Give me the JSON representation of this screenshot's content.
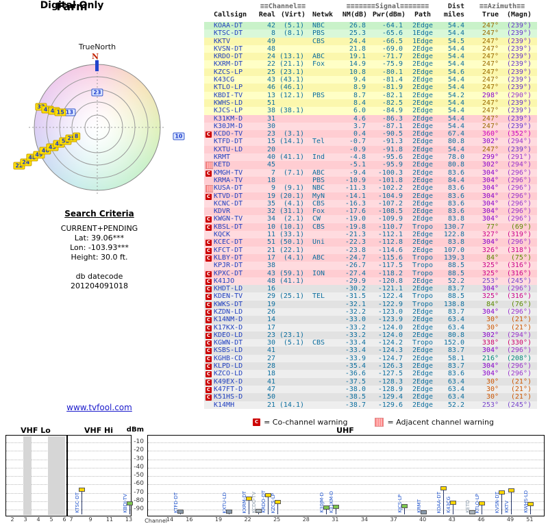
{
  "titles": {
    "title": "Farm",
    "subtitle": "Digital Only"
  },
  "radar": {
    "north_label": "TrueNorth",
    "n_label": "N",
    "markers": [
      {
        "ch": "23",
        "az": 0,
        "r": 0.55,
        "style": "blue"
      },
      {
        "ch": "13",
        "az": 298,
        "r": 0.5,
        "style": "blue"
      },
      {
        "ch": "10",
        "az": 96,
        "r": 1.3,
        "style": "blue"
      },
      {
        "ch": "32",
        "az": 290,
        "r": 0.95,
        "style": "yellow"
      },
      {
        "ch": "45",
        "az": 290,
        "r": 0.84,
        "style": "yellow"
      },
      {
        "ch": "40",
        "az": 291,
        "r": 0.73,
        "style": "yellow"
      },
      {
        "ch": "15",
        "az": 292,
        "r": 0.63,
        "style": "yellow"
      },
      {
        "ch": "22",
        "az": 244,
        "r": 1.38,
        "style": "yellow"
      },
      {
        "ch": "24",
        "az": 244,
        "r": 1.26,
        "style": "yellow"
      },
      {
        "ch": "48",
        "az": 245,
        "r": 1.14,
        "style": "yellow"
      },
      {
        "ch": "49",
        "az": 245,
        "r": 1.02,
        "style": "yellow"
      },
      {
        "ch": "46",
        "az": 246,
        "r": 0.9,
        "style": "yellow"
      },
      {
        "ch": "43",
        "az": 246,
        "r": 0.78,
        "style": "yellow"
      },
      {
        "ch": "42",
        "az": 247,
        "r": 0.66,
        "style": "yellow"
      },
      {
        "ch": "51",
        "az": 247,
        "r": 0.55,
        "style": "yellow"
      },
      {
        "ch": "25",
        "az": 247,
        "r": 0.45,
        "style": "yellow"
      },
      {
        "ch": "8",
        "az": 247,
        "r": 0.36,
        "style": "yellow"
      }
    ]
  },
  "criteria": {
    "heading": "Search Criteria",
    "lines": [
      "CURRENT+PENDING",
      "Lat: 39.06***",
      "Lon: -103.93***",
      "Height: 30.0 ft."
    ],
    "datecode_label": "db datecode",
    "datecode": "201204091018"
  },
  "link": {
    "label": "www.tvfool.com"
  },
  "legend": {
    "co": "C",
    "co_text": "= Co-channel warning",
    "adj_text": "= Adjacent channel warning"
  },
  "table": {
    "header": {
      "channel": "≡≡Channel≡≡",
      "signal": "≡≡≡≡≡≡≡Signal≡≡≡≡≡≡≡",
      "dist": "Dist",
      "azimuth": "≡≡Azimuth≡≡",
      "callsign": "Callsign",
      "real": "Real",
      "virt": "(Virt)",
      "netwk": "Netwk",
      "nm": "NM(dB)",
      "pwr": "Pwr(dBm)",
      "path": "Path",
      "miles": "miles",
      "true": "True",
      "magn": "(Magn)"
    },
    "az_colors": {
      "247": "#9a6a00",
      "239": "#6633cc",
      "298": "#8800cc",
      "290": "#9933cc",
      "360": "#cc00bb",
      "352": "#cc00bb",
      "302": "#8800cc",
      "294": "#9933cc",
      "299": "#8800cc",
      "291": "#9933cc",
      "304": "#8800cc",
      "296": "#9933cc",
      "77": "#5a8a00",
      "69": "#5a8a00",
      "327": "#cc0088",
      "319": "#cc0088",
      "326": "#cc0088",
      "318": "#cc0088",
      "84": "#5a8a00",
      "75": "#5a8a00",
      "76": "#5a8a00",
      "325": "#cc0088",
      "316": "#cc0088",
      "253": "#7744cc",
      "245": "#7744cc",
      "30": "#cc5500",
      "21": "#cc5500",
      "338": "#cc0066",
      "330": "#cc0066",
      "216": "#008877",
      "208": "#008877"
    },
    "columns": [
      "warn",
      "callsign",
      "real",
      "virt",
      "netwk",
      "nm_db",
      "pwr_dbm",
      "path",
      "miles",
      "az_true",
      "az_magn",
      "band"
    ],
    "rows": [
      [
        "",
        "KOAA-DT",
        "42",
        "(5.1)",
        "NBC",
        "26.8",
        "-64.1",
        "2Edge",
        "54.4",
        "247°",
        "(239°)",
        "green"
      ],
      [
        "",
        "KTSC-DT",
        "8",
        "(8.1)",
        "PBS",
        "25.3",
        "-65.6",
        "1Edge",
        "54.4",
        "247°",
        "(239°)",
        "green"
      ],
      [
        "",
        "KKTV",
        "49",
        "",
        "CBS",
        "24.4",
        "-66.5",
        "1Edge",
        "54.5",
        "247°",
        "(239°)",
        "yellow"
      ],
      [
        "",
        "KVSN-DT",
        "48",
        "",
        "",
        "21.8",
        "-69.0",
        "2Edge",
        "54.4",
        "247°",
        "(239°)",
        "yellow"
      ],
      [
        "",
        "KRDO-DT",
        "24",
        "(13.1)",
        "ABC",
        "19.1",
        "-71.7",
        "2Edge",
        "54.4",
        "247°",
        "(239°)",
        "yellow"
      ],
      [
        "",
        "KXRM-DT",
        "22",
        "(21.1)",
        "Fox",
        "14.9",
        "-75.9",
        "2Edge",
        "54.4",
        "247°",
        "(239°)",
        "yellow"
      ],
      [
        "",
        "KZCS-LP",
        "25",
        "(23.1)",
        "",
        "10.8",
        "-80.1",
        "2Edge",
        "54.6",
        "247°",
        "(239°)",
        "yellow"
      ],
      [
        "",
        "K43CG",
        "43",
        "(43.1)",
        "",
        "9.4",
        "-81.4",
        "2Edge",
        "54.4",
        "247°",
        "(239°)",
        "yellow"
      ],
      [
        "",
        "KTLO-LP",
        "46",
        "(46.1)",
        "",
        "8.9",
        "-81.9",
        "2Edge",
        "54.4",
        "247°",
        "(239°)",
        "yellow"
      ],
      [
        "",
        "KBDI-TV",
        "13",
        "(12.1)",
        "PBS",
        "8.7",
        "-82.1",
        "2Edge",
        "54.2",
        "298°",
        "(290°)",
        "yellow"
      ],
      [
        "",
        "KWHS-LD",
        "51",
        "",
        "",
        "8.4",
        "-82.5",
        "2Edge",
        "54.4",
        "247°",
        "(239°)",
        "yellow"
      ],
      [
        "",
        "KJCS-LP",
        "38",
        "(38.1)",
        "",
        "6.0",
        "-84.9",
        "2Edge",
        "54.4",
        "247°",
        "(239°)",
        "yellow"
      ],
      [
        "",
        "K31KM-D",
        "31",
        "",
        "",
        "4.6",
        "-86.3",
        "2Edge",
        "54.4",
        "247°",
        "(239°)",
        "pink"
      ],
      [
        "",
        "K30JM-D",
        "30",
        "",
        "",
        "3.7",
        "-87.1",
        "2Edge",
        "54.4",
        "247°",
        "(239°)",
        "pink"
      ],
      [
        "C",
        "KCDO-TV",
        "23",
        "(3.1)",
        "",
        "0.4",
        "-90.5",
        "2Edge",
        "67.4",
        "360°",
        "(352°)",
        "pink"
      ],
      [
        "",
        "KTFD-DT",
        "15",
        "(14.1)",
        "Tel",
        "-0.7",
        "-91.3",
        "2Edge",
        "80.8",
        "302°",
        "(294°)",
        "pink"
      ],
      [
        "",
        "KXTU-LD",
        "20",
        "",
        "",
        "-0.9",
        "-91.8",
        "2Edge",
        "54.4",
        "247°",
        "(239°)",
        "pink"
      ],
      [
        "",
        "KRMT",
        "40",
        "(41.1)",
        "Ind",
        "-4.8",
        "-95.6",
        "2Edge",
        "78.0",
        "299°",
        "(291°)",
        "pink"
      ],
      [
        "A",
        "KETD",
        "45",
        "",
        "",
        "-5.1",
        "-95.9",
        "2Edge",
        "80.8",
        "302°",
        "(294°)",
        "pink"
      ],
      [
        "C",
        "KMGH-TV",
        "7",
        "(7.1)",
        "ABC",
        "-9.4",
        "-100.3",
        "2Edge",
        "83.6",
        "304°",
        "(296°)",
        "pink"
      ],
      [
        "",
        "KRMA-TV",
        "18",
        "",
        "PBS",
        "-10.9",
        "-101.8",
        "2Edge",
        "84.4",
        "304°",
        "(296°)",
        "pink"
      ],
      [
        "A",
        "KUSA-DT",
        "9",
        "(9.1)",
        "NBC",
        "-11.3",
        "-102.2",
        "2Edge",
        "83.6",
        "304°",
        "(296°)",
        "pink"
      ],
      [
        "C",
        "KTVD-DT",
        "19",
        "(20.1)",
        "MyN",
        "-14.1",
        "-104.9",
        "2Edge",
        "83.6",
        "304°",
        "(296°)",
        "pink"
      ],
      [
        "",
        "KCNC-DT",
        "35",
        "(4.1)",
        "CBS",
        "-16.3",
        "-107.2",
        "2Edge",
        "83.6",
        "304°",
        "(296°)",
        "pink"
      ],
      [
        "",
        "KDVR",
        "32",
        "(31.1)",
        "Fox",
        "-17.6",
        "-108.5",
        "2Edge",
        "83.6",
        "304°",
        "(296°)",
        "pink"
      ],
      [
        "C",
        "KWGN-TV",
        "34",
        "(2.1)",
        "CW",
        "-19.0",
        "-109.9",
        "2Edge",
        "83.8",
        "304°",
        "(296°)",
        "pink"
      ],
      [
        "C",
        "KBSL-DT",
        "10",
        "(10.1)",
        "CBS",
        "-19.8",
        "-110.7",
        "Tropo",
        "130.7",
        "77°",
        "(69°)",
        "pink"
      ],
      [
        "",
        "KQCK",
        "11",
        "(33.1)",
        "",
        "-21.3",
        "-112.1",
        "2Edge",
        "122.8",
        "327°",
        "(319°)",
        "pink"
      ],
      [
        "C",
        "KCEC-DT",
        "51",
        "(50.1)",
        "Uni",
        "-22.3",
        "-112.8",
        "2Edge",
        "83.8",
        "304°",
        "(296°)",
        "pink"
      ],
      [
        "C",
        "KFCT-DT",
        "21",
        "(22.1)",
        "",
        "-23.8",
        "-114.6",
        "2Edge",
        "107.0",
        "326°",
        "(318°)",
        "pink"
      ],
      [
        "C",
        "KLBY-DT",
        "17",
        "(4.1)",
        "ABC",
        "-24.7",
        "-115.6",
        "Tropo",
        "139.3",
        "84°",
        "(75°)",
        "pink"
      ],
      [
        "",
        "KPJR-DT",
        "38",
        "",
        "",
        "-26.7",
        "-117.5",
        "Tropo",
        "88.5",
        "325°",
        "(316°)",
        "pink"
      ],
      [
        "C",
        "KPXC-DT",
        "43",
        "(59.1)",
        "ION",
        "-27.4",
        "-118.2",
        "Tropo",
        "88.5",
        "325°",
        "(316°)",
        "pink"
      ],
      [
        "C",
        "K41JO",
        "48",
        "(41.1)",
        "",
        "-29.9",
        "-120.8",
        "2Edge",
        "52.2",
        "253°",
        "(245°)",
        "pink"
      ],
      [
        "C",
        "KHDT-LD",
        "16",
        "",
        "",
        "-30.2",
        "-121.1",
        "2Edge",
        "83.7",
        "304°",
        "(296°)",
        "gray"
      ],
      [
        "C",
        "KDEN-TV",
        "29",
        "(25.1)",
        "TEL",
        "-31.5",
        "-122.4",
        "Tropo",
        "88.5",
        "325°",
        "(316°)",
        "gray"
      ],
      [
        "C",
        "KWKS-DT",
        "19",
        "",
        "",
        "-32.1",
        "-122.9",
        "Tropo",
        "138.8",
        "84°",
        "(76°)",
        "gray"
      ],
      [
        "C",
        "KZDN-LD",
        "26",
        "",
        "",
        "-32.2",
        "-123.0",
        "2Edge",
        "83.7",
        "304°",
        "(296°)",
        "gray"
      ],
      [
        "C",
        "K14NM-D",
        "14",
        "",
        "",
        "-33.0",
        "-123.9",
        "2Edge",
        "63.4",
        "30°",
        "(21°)",
        "gray"
      ],
      [
        "C",
        "K17KX-D",
        "17",
        "",
        "",
        "-33.2",
        "-124.0",
        "2Edge",
        "63.4",
        "30°",
        "(21°)",
        "gray"
      ],
      [
        "C",
        "KDEO-LD",
        "23",
        "(23.1)",
        "",
        "-33.2",
        "-124.0",
        "2Edge",
        "80.8",
        "302°",
        "(294°)",
        "gray"
      ],
      [
        "C",
        "KGWN-DT",
        "30",
        "(5.1)",
        "CBS",
        "-33.4",
        "-124.2",
        "Tropo",
        "152.0",
        "338°",
        "(330°)",
        "gray"
      ],
      [
        "C",
        "KSBS-LD",
        "41",
        "",
        "",
        "-33.4",
        "-124.3",
        "2Edge",
        "83.7",
        "304°",
        "(296°)",
        "gray"
      ],
      [
        "C",
        "KGHB-CD",
        "27",
        "",
        "",
        "-33.9",
        "-124.7",
        "2Edge",
        "58.1",
        "216°",
        "(208°)",
        "gray"
      ],
      [
        "C",
        "KLPD-LD",
        "28",
        "",
        "",
        "-35.4",
        "-126.3",
        "2Edge",
        "83.7",
        "304°",
        "(296°)",
        "gray"
      ],
      [
        "C",
        "KZCO-LD",
        "18",
        "",
        "",
        "-36.6",
        "-127.5",
        "2Edge",
        "83.6",
        "304°",
        "(296°)",
        "gray"
      ],
      [
        "C",
        "K49EX-D",
        "41",
        "",
        "",
        "-37.5",
        "-128.3",
        "2Edge",
        "63.4",
        "30°",
        "(21°)",
        "gray"
      ],
      [
        "C",
        "K47FT-D",
        "47",
        "",
        "",
        "-38.0",
        "-128.9",
        "2Edge",
        "63.4",
        "30°",
        "(21°)",
        "gray"
      ],
      [
        "C",
        "K51HS-D",
        "50",
        "",
        "",
        "-38.5",
        "-129.4",
        "2Edge",
        "63.4",
        "30°",
        "(21°)",
        "gray"
      ],
      [
        "",
        "K14MH",
        "21",
        "(14.1)",
        "",
        "-38.7",
        "-129.6",
        "2Edge",
        "52.2",
        "253°",
        "(245°)",
        "gray"
      ]
    ]
  },
  "chart_data": {
    "type": "lollipop-spectrum",
    "ylabel": "dBm",
    "xlabel": "Channel",
    "yticks": [
      -10,
      -20,
      -30,
      -40,
      -50,
      -60,
      -70,
      -80,
      -90
    ],
    "ylim": [
      -95,
      -5
    ],
    "panels": [
      {
        "name": "VHF Lo",
        "ticks": [
          2,
          3,
          4,
          5,
          6
        ],
        "shaded": [
          [
            2.8,
            3.4
          ],
          [
            4.7,
            6.2
          ]
        ],
        "stations": []
      },
      {
        "name": "VHF Hi",
        "ticks": [
          7,
          9,
          11,
          13
        ],
        "shaded": [],
        "stations": [
          {
            "callsign": "KTSC-DT",
            "ch": 8,
            "dbm": -65.6,
            "cap": "#ffd800",
            "label": "#2255cc"
          },
          {
            "callsign": "KBDI-TV",
            "ch": 13,
            "dbm": -82.1,
            "cap": "#7ec850",
            "label": "#2255cc"
          }
        ]
      },
      {
        "name": "UHF",
        "ticks": [
          14,
          16,
          19,
          22,
          25,
          28,
          31,
          34,
          37,
          40,
          43,
          46,
          49,
          51
        ],
        "shaded": [],
        "stations": [
          {
            "callsign": "KTFD-DT",
            "ch": 15,
            "dbm": -91.3,
            "cap": "#8899aa",
            "label": "#2255cc"
          },
          {
            "callsign": "KXTU-LD",
            "ch": 20,
            "dbm": -91.8,
            "cap": "#8899aa",
            "label": "#2255cc"
          },
          {
            "callsign": "KXRM-DT",
            "ch": 22,
            "dbm": -75.9,
            "cap": "#ffd800",
            "label": "#2255cc"
          },
          {
            "callsign": "KCDO-TV",
            "ch": 23,
            "dbm": -90.5,
            "cap": "#aab4bb",
            "label": "#8899aa"
          },
          {
            "callsign": "KRDO-DT",
            "ch": 24,
            "dbm": -71.7,
            "cap": "#ffd800",
            "label": "#2255cc"
          },
          {
            "callsign": "KZCS-LP",
            "ch": 25,
            "dbm": -80.1,
            "cap": "#ffd800",
            "label": "#2255cc"
          },
          {
            "callsign": "K30JM-D",
            "ch": 30,
            "dbm": -87.1,
            "cap": "#7ec850",
            "label": "#2255cc"
          },
          {
            "callsign": "K31KM-D",
            "ch": 31,
            "dbm": -86.3,
            "cap": "#7ec850",
            "label": "#2255cc"
          },
          {
            "callsign": "KJCS-LP",
            "ch": 38,
            "dbm": -84.9,
            "cap": "#7ec850",
            "label": "#2255cc"
          },
          {
            "callsign": "KRMT",
            "ch": 40,
            "dbm": -95.6,
            "cap": "#8899aa",
            "label": "#2255cc"
          },
          {
            "callsign": "KOAA-DT",
            "ch": 42,
            "dbm": -64.1,
            "cap": "#ffd800",
            "label": "#2255cc"
          },
          {
            "callsign": "K43CG",
            "ch": 43,
            "dbm": -81.4,
            "cap": "#ffd800",
            "label": "#2255cc"
          },
          {
            "callsign": "KETD",
            "ch": 45,
            "dbm": -95.9,
            "cap": "#aab4bb",
            "label": "#8899aa"
          },
          {
            "callsign": "KTLO-LP",
            "ch": 46,
            "dbm": -81.9,
            "cap": "#ffd800",
            "label": "#2255cc"
          },
          {
            "callsign": "KVSN-DT",
            "ch": 48,
            "dbm": -69.0,
            "cap": "#ffd800",
            "label": "#2255cc"
          },
          {
            "callsign": "KKTV",
            "ch": 49,
            "dbm": -66.5,
            "cap": "#ffd800",
            "label": "#2255cc"
          },
          {
            "callsign": "KWHS-LD",
            "ch": 51,
            "dbm": -82.5,
            "cap": "#ffd800",
            "label": "#2255cc"
          }
        ]
      }
    ]
  }
}
